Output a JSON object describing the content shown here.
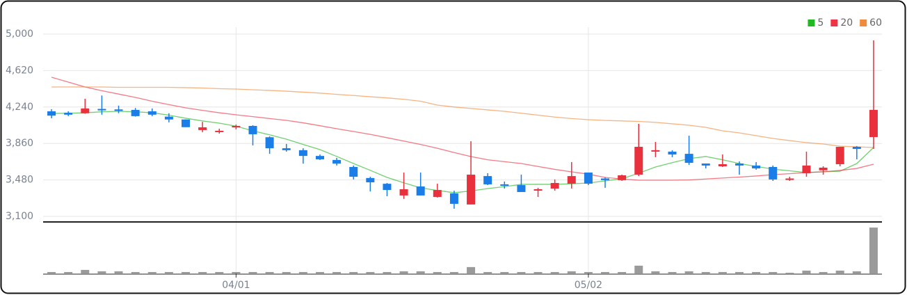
{
  "chart_data": {
    "type": "candlestick",
    "categories": [
      null,
      null,
      null,
      null,
      null,
      null,
      null,
      null,
      null,
      null,
      null,
      "04/01",
      null,
      null,
      null,
      null,
      null,
      null,
      null,
      null,
      null,
      null,
      null,
      null,
      null,
      null,
      null,
      null,
      null,
      null,
      null,
      null,
      "05/02",
      null,
      null,
      null,
      null,
      null,
      null,
      null,
      null,
      null,
      null,
      null,
      null,
      null,
      null,
      null,
      null,
      null
    ],
    "open": [
      4195,
      4180,
      4175,
      4220,
      4215,
      4210,
      4195,
      4140,
      4110,
      4000,
      3978,
      4028,
      4043,
      3925,
      3810,
      3790,
      3730,
      3688,
      3615,
      3500,
      3440,
      3318,
      3412,
      3303,
      3340,
      3224,
      3520,
      3434,
      3426,
      3368,
      3390,
      3441,
      3557,
      3495,
      3478,
      3535,
      3775,
      3775,
      3752,
      3651,
      3622,
      3651,
      3630,
      3615,
      3480,
      3550,
      3580,
      3644,
      3825,
      3927
    ],
    "high": [
      4217,
      4195,
      4325,
      4360,
      4255,
      4230,
      4225,
      4175,
      4110,
      4085,
      4014,
      4057,
      4050,
      3935,
      3855,
      3810,
      3745,
      3710,
      3630,
      3513,
      3448,
      3557,
      3557,
      3441,
      3368,
      3883,
      3550,
      3463,
      3535,
      3397,
      3485,
      3666,
      3557,
      3506,
      3535,
      4065,
      3876,
      3790,
      3941,
      3651,
      3745,
      3673,
      3666,
      3630,
      3513,
      3775,
      3622,
      3825,
      3833,
      4935
    ],
    "low": [
      4123,
      4145,
      4170,
      4160,
      4175,
      4140,
      4145,
      4080,
      4030,
      3978,
      3963,
      4007,
      3840,
      3752,
      3775,
      3650,
      3688,
      3630,
      3485,
      3360,
      3310,
      3282,
      3318,
      3296,
      3180,
      3224,
      3426,
      3390,
      3354,
      3303,
      3368,
      3390,
      3426,
      3398,
      3470,
      3520,
      3717,
      3717,
      3637,
      3600,
      3615,
      3535,
      3586,
      3470,
      3470,
      3513,
      3535,
      3622,
      3695,
      3803
    ],
    "close": [
      4150,
      4160,
      4225,
      4205,
      4200,
      4145,
      4160,
      4110,
      4030,
      4028,
      3992,
      4043,
      3956,
      3810,
      3790,
      3730,
      3695,
      3650,
      3513,
      3455,
      3375,
      3383,
      3318,
      3375,
      3231,
      3535,
      3434,
      3419,
      3354,
      3383,
      3448,
      3520,
      3441,
      3478,
      3528,
      3825,
      3790,
      3745,
      3658,
      3630,
      3644,
      3630,
      3600,
      3485,
      3495,
      3630,
      3608,
      3825,
      3803,
      4210
    ],
    "up_color": "#e8313d",
    "down_color": "#1a7de8",
    "lines": [
      {
        "name": "5",
        "color": "#22b822",
        "values": [
          4173,
          4175,
          4180,
          4190,
          4195,
          4190,
          4180,
          4155,
          4123,
          4095,
          4072,
          4040,
          3992,
          3950,
          3905,
          3850,
          3796,
          3725,
          3651,
          3580,
          3506,
          3450,
          3397,
          3370,
          3347,
          3365,
          3390,
          3410,
          3434,
          3434,
          3434,
          3440,
          3448,
          3470,
          3492,
          3550,
          3615,
          3660,
          3702,
          3724,
          3690,
          3651,
          3620,
          3593,
          3575,
          3557,
          3565,
          3571,
          3651,
          3818
        ]
      },
      {
        "name": "20",
        "color": "#ee3344",
        "values": [
          4550,
          4500,
          4449,
          4410,
          4375,
          4340,
          4300,
          4265,
          4231,
          4205,
          4180,
          4159,
          4140,
          4120,
          4101,
          4075,
          4045,
          4014,
          3985,
          3955,
          3920,
          3885,
          3850,
          3810,
          3765,
          3724,
          3690,
          3670,
          3651,
          3620,
          3590,
          3564,
          3540,
          3506,
          3490,
          3477,
          3477,
          3477,
          3480,
          3490,
          3500,
          3510,
          3521,
          3535,
          3545,
          3557,
          3565,
          3579,
          3600,
          3644
        ]
      },
      {
        "name": "60",
        "color": "#f28a3c",
        "values": [
          4449,
          4449,
          4449,
          4449,
          4445,
          4445,
          4445,
          4445,
          4442,
          4438,
          4431,
          4427,
          4420,
          4413,
          4405,
          4395,
          4385,
          4372,
          4360,
          4347,
          4335,
          4320,
          4300,
          4260,
          4240,
          4225,
          4210,
          4195,
          4175,
          4155,
          4135,
          4120,
          4108,
          4100,
          4095,
          4090,
          4080,
          4065,
          4050,
          4028,
          3992,
          3970,
          3941,
          3912,
          3890,
          3869,
          3854,
          3832,
          3825,
          3818
        ]
      }
    ],
    "volume": {
      "color": "#9a9a9a",
      "ylim": [
        0,
        70
      ],
      "values": [
        2,
        2,
        5,
        3,
        3,
        2,
        2,
        2,
        2,
        2,
        2,
        2,
        2,
        2,
        2,
        2,
        2,
        2,
        2,
        2,
        2,
        3,
        3,
        2,
        2,
        9,
        2,
        2,
        2,
        2,
        2,
        3,
        2,
        2,
        2,
        11,
        3,
        2,
        3,
        2,
        2,
        2,
        2,
        2,
        1,
        4,
        2,
        4,
        3,
        65
      ]
    },
    "ylim": [
      3100,
      5000
    ],
    "yticks": [
      {
        "value": 3100,
        "label": "3,100"
      },
      {
        "value": 3480,
        "label": "3,480"
      },
      {
        "value": 3860,
        "label": "3,860"
      },
      {
        "value": 4240,
        "label": "4,240"
      },
      {
        "value": 4620,
        "label": "4,620"
      },
      {
        "value": 5000,
        "label": "5,000"
      }
    ],
    "grid": true,
    "legend": "top-right"
  }
}
